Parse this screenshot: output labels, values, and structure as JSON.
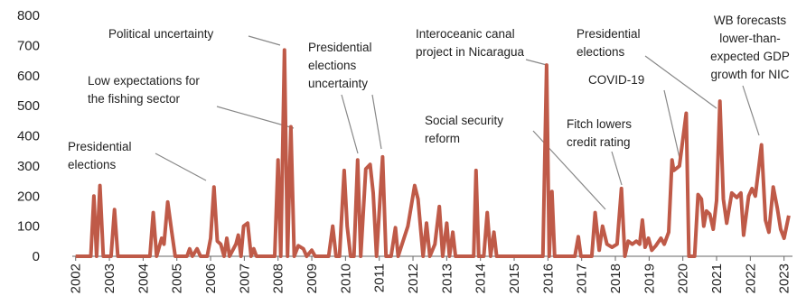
{
  "chart_data": {
    "type": "line",
    "x": [
      2002.0,
      2002.45,
      2002.54,
      2002.62,
      2002.72,
      2002.82,
      2003.05,
      2003.15,
      2003.25,
      2004.2,
      2004.3,
      2004.4,
      2004.55,
      2004.62,
      2004.73,
      2004.85,
      2004.95,
      2005.3,
      2005.38,
      2005.46,
      2005.6,
      2005.7,
      2005.9,
      2006.0,
      2006.1,
      2006.2,
      2006.3,
      2006.4,
      2006.48,
      2006.56,
      2006.75,
      2006.82,
      2006.9,
      2006.98,
      2007.1,
      2007.2,
      2007.28,
      2007.36,
      2007.9,
      2008.0,
      2008.08,
      2008.19,
      2008.28,
      2008.38,
      2008.48,
      2008.6,
      2008.75,
      2008.85,
      2009.0,
      2009.1,
      2009.5,
      2009.62,
      2009.72,
      2009.82,
      2009.96,
      2010.05,
      2010.15,
      2010.25,
      2010.36,
      2010.45,
      2010.6,
      2010.73,
      2010.82,
      2010.92,
      2011.1,
      2011.2,
      2011.35,
      2011.48,
      2011.56,
      2011.85,
      2012.05,
      2012.15,
      2012.3,
      2012.4,
      2012.5,
      2012.65,
      2012.78,
      2012.88,
      2013.0,
      2013.08,
      2013.18,
      2013.26,
      2013.8,
      2013.87,
      2013.95,
      2014.1,
      2014.2,
      2014.3,
      2014.4,
      2014.48,
      2015.85,
      2015.96,
      2016.04,
      2016.12,
      2016.2,
      2016.8,
      2016.9,
      2016.98,
      2017.3,
      2017.4,
      2017.52,
      2017.62,
      2017.75,
      2017.9,
      2018.05,
      2018.18,
      2018.28,
      2018.38,
      2018.5,
      2018.62,
      2018.72,
      2018.8,
      2018.88,
      2018.98,
      2019.08,
      2019.2,
      2019.35,
      2019.45,
      2019.58,
      2019.68,
      2019.73,
      2019.9,
      2020.1,
      2020.18,
      2020.35,
      2020.45,
      2020.55,
      2020.62,
      2020.7,
      2020.8,
      2020.9,
      2021.0,
      2021.1,
      2021.2,
      2021.3,
      2021.45,
      2021.6,
      2021.72,
      2021.8,
      2021.95,
      2022.05,
      2022.15,
      2022.33,
      2022.45,
      2022.55,
      2022.68,
      2022.8,
      2022.9,
      2023.0,
      2023.14
    ],
    "series": [
      {
        "color": "#bf5a48",
        "values": [
          0,
          0,
          200,
          0,
          235,
          0,
          0,
          155,
          0,
          0,
          145,
          0,
          60,
          40,
          180,
          80,
          0,
          0,
          25,
          0,
          25,
          0,
          0,
          60,
          230,
          50,
          40,
          0,
          60,
          0,
          40,
          70,
          0,
          100,
          110,
          0,
          25,
          0,
          0,
          320,
          0,
          685,
          0,
          430,
          0,
          35,
          25,
          0,
          20,
          0,
          0,
          100,
          0,
          0,
          285,
          100,
          0,
          0,
          320,
          0,
          290,
          305,
          210,
          0,
          330,
          0,
          0,
          95,
          0,
          100,
          235,
          190,
          0,
          110,
          0,
          40,
          165,
          0,
          110,
          0,
          80,
          0,
          0,
          285,
          0,
          0,
          145,
          0,
          80,
          0,
          0,
          635,
          0,
          215,
          0,
          0,
          65,
          0,
          0,
          145,
          20,
          100,
          40,
          30,
          40,
          225,
          0,
          50,
          40,
          50,
          40,
          120,
          30,
          60,
          20,
          35,
          60,
          40,
          80,
          320,
          285,
          300,
          475,
          0,
          0,
          205,
          190,
          100,
          150,
          140,
          90,
          185,
          515,
          190,
          110,
          210,
          195,
          210,
          70,
          200,
          225,
          200,
          370,
          120,
          80,
          230,
          160,
          90,
          60,
          135
        ]
      }
    ],
    "xlim": [
      2001.9,
      2023.25
    ],
    "xticks": [
      2002,
      2003,
      2004,
      2005,
      2006,
      2007,
      2008,
      2009,
      2010,
      2011,
      2012,
      2013,
      2014,
      2015,
      2016,
      2017,
      2018,
      2019,
      2020,
      2021,
      2022,
      2023
    ],
    "ylim": [
      0,
      800
    ],
    "yticks": [
      0,
      100,
      200,
      300,
      400,
      500,
      600,
      700,
      800
    ],
    "annotations": [
      {
        "lines": [
          "Political uncertainty"
        ]
      },
      {
        "lines": [
          "Low expectations for",
          "the fishing sector"
        ]
      },
      {
        "lines": [
          "Presidential",
          "elections"
        ]
      },
      {
        "lines": [
          "Presidential",
          "elections",
          "uncertainty"
        ]
      },
      {
        "lines": [
          "Interoceanic canal",
          "project in Nicaragua"
        ]
      },
      {
        "lines": [
          "Social security",
          "reform"
        ]
      },
      {
        "lines": [
          "Fitch lowers",
          "credit rating"
        ]
      },
      {
        "lines": [
          "Presidential",
          "elections"
        ]
      },
      {
        "lines": [
          "COVID-19"
        ]
      },
      {
        "lines": [
          "WB forecasts",
          "lower-than-",
          "expected GDP",
          "growth for NIC"
        ]
      }
    ]
  }
}
